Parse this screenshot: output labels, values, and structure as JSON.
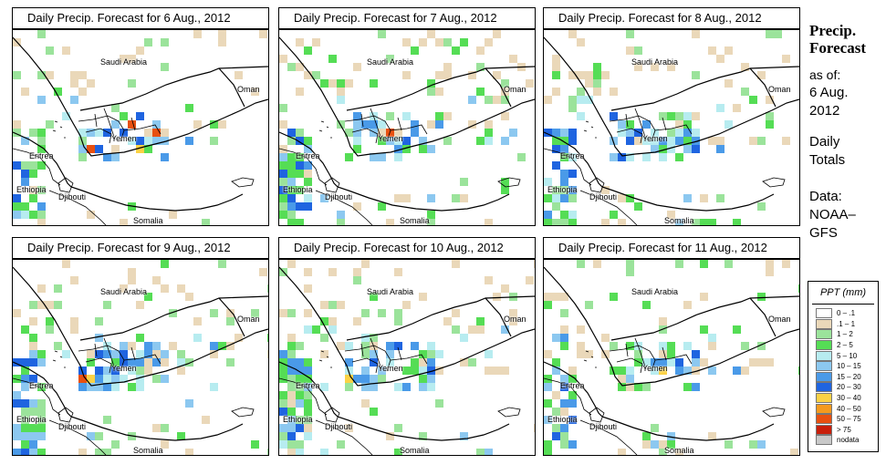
{
  "panels": [
    {
      "title": "Daily Precip. Forecast for  6 Aug., 2012",
      "seed": 11,
      "wetness": 0.9
    },
    {
      "title": "Daily Precip. Forecast for  7 Aug., 2012",
      "seed": 23,
      "wetness": 1.0
    },
    {
      "title": "Daily Precip. Forecast for  8 Aug., 2012",
      "seed": 37,
      "wetness": 1.1
    },
    {
      "title": "Daily Precip. Forecast for  9 Aug., 2012",
      "seed": 41,
      "wetness": 1.3
    },
    {
      "title": "Daily Precip. Forecast for  10 Aug., 2012",
      "seed": 53,
      "wetness": 1.15
    },
    {
      "title": "Daily Precip. Forecast for  11 Aug., 2012",
      "seed": 67,
      "wetness": 0.85
    }
  ],
  "map_labels": {
    "saudi_arabia": "Saudi Arabia",
    "oman": "Oman",
    "yemen": "Yemen",
    "eritrea": "Eritrea",
    "ethiopia": "Ethiopia",
    "djibouti": "Djibouti",
    "somalia": "Somalia"
  },
  "side": {
    "title_line1": "Precip.",
    "title_line2": "Forecast",
    "as_of_label": "as of:",
    "date_line1": "6 Aug.",
    "date_line2": "2012",
    "totals_line1": "Daily",
    "totals_line2": "Totals",
    "data_label": "Data:",
    "source_line1": "NOAA–",
    "source_line2": "GFS"
  },
  "legend": {
    "title": "PPT (mm)",
    "bins": [
      {
        "label": "0 – .1",
        "color": "#ffffff"
      },
      {
        "label": ".1 – 1",
        "color": "#ead8b9"
      },
      {
        "label": "1 – 2",
        "color": "#9be39b"
      },
      {
        "label": "2 – 5",
        "color": "#55dd55"
      },
      {
        "label": "5 – 10",
        "color": "#b7ecf0"
      },
      {
        "label": "10 – 15",
        "color": "#8cc8f0"
      },
      {
        "label": "15 – 20",
        "color": "#4a9ae8"
      },
      {
        "label": "20 – 30",
        "color": "#1f64e0"
      },
      {
        "label": "30 – 40",
        "color": "#fbd246"
      },
      {
        "label": "40 – 50",
        "color": "#f59a1e"
      },
      {
        "label": "50 – 75",
        "color": "#e85010"
      },
      {
        "label": "> 75",
        "color": "#c81e0a"
      },
      {
        "label": "nodata",
        "color": "#c8c8c8"
      }
    ]
  }
}
